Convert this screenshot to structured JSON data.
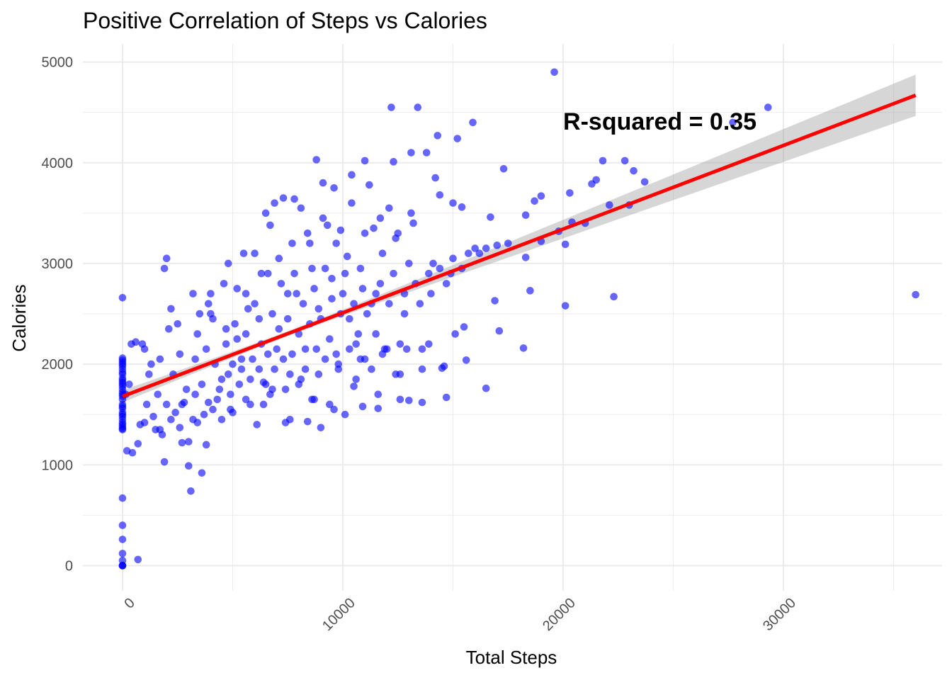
{
  "chart_data": {
    "type": "scatter",
    "title": "Positive Correlation of Steps vs Calories",
    "xlabel": "Total Steps",
    "ylabel": "Calories",
    "xlim": [
      -1800,
      37200
    ],
    "ylim": [
      -250,
      5180
    ],
    "x_ticks": [
      0,
      10000,
      20000,
      30000
    ],
    "x_tick_labels": [
      "0",
      "10000",
      "20000",
      "30000"
    ],
    "y_ticks": [
      0,
      1000,
      2000,
      3000,
      4000,
      5000
    ],
    "y_tick_labels": [
      "0",
      "1000",
      "2000",
      "3000",
      "4000",
      "5000"
    ],
    "grid": true,
    "point_color": "#0000ff",
    "point_opacity": 0.6,
    "line_color": "#ff0000",
    "ribbon_color": "#999999",
    "regression": {
      "x_start": 0,
      "y_start": 1680,
      "x_end": 36000,
      "y_end": 4670,
      "ci_halfwidth_start": 60,
      "ci_halfwidth_mid": 25,
      "ci_halfwidth_end": 205,
      "x_mean": 7600
    },
    "annotation": {
      "text": "R-squared =  0.35",
      "x": 20000,
      "y": 4330
    },
    "points_note_generation": "sampled",
    "points": [
      [
        0,
        0
      ],
      [
        0,
        0
      ],
      [
        0,
        0
      ],
      [
        0,
        50
      ],
      [
        0,
        120
      ],
      [
        0,
        260
      ],
      [
        0,
        400
      ],
      [
        0,
        670
      ],
      [
        0,
        2660
      ],
      [
        0,
        1350
      ],
      [
        0,
        1360
      ],
      [
        0,
        1380
      ],
      [
        0,
        1400
      ],
      [
        0,
        1420
      ],
      [
        0,
        1450
      ],
      [
        0,
        1480
      ],
      [
        0,
        1500
      ],
      [
        0,
        1520
      ],
      [
        0,
        1560
      ],
      [
        0,
        1580
      ],
      [
        0,
        1600
      ],
      [
        0,
        1650
      ],
      [
        0,
        1680
      ],
      [
        0,
        1700
      ],
      [
        0,
        1720
      ],
      [
        0,
        1750
      ],
      [
        0,
        1780
      ],
      [
        0,
        1800
      ],
      [
        0,
        1820
      ],
      [
        0,
        1840
      ],
      [
        0,
        1860
      ],
      [
        0,
        1900
      ],
      [
        0,
        1920
      ],
      [
        0,
        1950
      ],
      [
        0,
        1980
      ],
      [
        0,
        2000
      ],
      [
        0,
        2020
      ],
      [
        0,
        2040
      ],
      [
        0,
        2060
      ],
      [
        700,
        60
      ],
      [
        200,
        1140
      ],
      [
        450,
        1120
      ],
      [
        150,
        1700
      ],
      [
        300,
        1800
      ],
      [
        400,
        2200
      ],
      [
        600,
        2220
      ],
      [
        900,
        2200
      ],
      [
        1100,
        1600
      ],
      [
        800,
        1400
      ],
      [
        700,
        1210
      ],
      [
        1000,
        1420
      ],
      [
        1200,
        1900
      ],
      [
        1400,
        1480
      ],
      [
        1500,
        1350
      ],
      [
        1800,
        1300
      ],
      [
        1900,
        1030
      ],
      [
        2000,
        1600
      ],
      [
        2100,
        2350
      ],
      [
        1900,
        2950
      ],
      [
        2000,
        3050
      ],
      [
        2200,
        2550
      ],
      [
        2500,
        2400
      ],
      [
        2400,
        1520
      ],
      [
        2600,
        1370
      ],
      [
        2800,
        1620
      ],
      [
        2700,
        1220
      ],
      [
        3000,
        1230
      ],
      [
        3000,
        990
      ],
      [
        3100,
        740
      ],
      [
        3200,
        1450
      ],
      [
        3300,
        1700
      ],
      [
        3400,
        2300
      ],
      [
        3500,
        2500
      ],
      [
        3600,
        920
      ],
      [
        3700,
        1500
      ],
      [
        3800,
        1200
      ],
      [
        3900,
        1620
      ],
      [
        3900,
        2600
      ],
      [
        4000,
        2700
      ],
      [
        4100,
        2450
      ],
      [
        4300,
        1650
      ],
      [
        4400,
        1750
      ],
      [
        4500,
        1450
      ],
      [
        4600,
        2800
      ],
      [
        4700,
        2200
      ],
      [
        4800,
        1900
      ],
      [
        4900,
        1550
      ],
      [
        5000,
        2000
      ],
      [
        5100,
        2400
      ],
      [
        5200,
        2750
      ],
      [
        5300,
        1800
      ],
      [
        5400,
        2050
      ],
      [
        5500,
        3100
      ],
      [
        5600,
        1650
      ],
      [
        5700,
        2550
      ],
      [
        5900,
        2050
      ],
      [
        6000,
        3100
      ],
      [
        6100,
        1400
      ],
      [
        6200,
        2450
      ],
      [
        6400,
        1820
      ],
      [
        6500,
        3500
      ],
      [
        6600,
        2900
      ],
      [
        6700,
        3380
      ],
      [
        6800,
        1750
      ],
      [
        6900,
        3600
      ],
      [
        7000,
        2150
      ],
      [
        7200,
        2800
      ],
      [
        7300,
        3650
      ],
      [
        7400,
        1420
      ],
      [
        7500,
        2450
      ],
      [
        7600,
        1900
      ],
      [
        7800,
        3640
      ],
      [
        7900,
        2700
      ],
      [
        8000,
        1800
      ],
      [
        8100,
        3550
      ],
      [
        8300,
        2150
      ],
      [
        8400,
        1430
      ],
      [
        8500,
        3200
      ],
      [
        8600,
        2950
      ],
      [
        8700,
        1650
      ],
      [
        8800,
        4030
      ],
      [
        8900,
        2550
      ],
      [
        9000,
        1370
      ],
      [
        9100,
        3800
      ],
      [
        9200,
        2050
      ],
      [
        9300,
        3380
      ],
      [
        9400,
        1600
      ],
      [
        9500,
        2850
      ],
      [
        9600,
        3750
      ],
      [
        9800,
        2000
      ],
      [
        9900,
        3330
      ],
      [
        10000,
        2700
      ],
      [
        10100,
        1500
      ],
      [
        10200,
        3070
      ],
      [
        10300,
        2450
      ],
      [
        10400,
        3880
      ],
      [
        10500,
        1780
      ],
      [
        10600,
        2200
      ],
      [
        10800,
        2950
      ],
      [
        10900,
        1580
      ],
      [
        11000,
        4020
      ],
      [
        11100,
        2500
      ],
      [
        11200,
        3780
      ],
      [
        11300,
        1950
      ],
      [
        11400,
        3350
      ],
      [
        11500,
        2700
      ],
      [
        11600,
        1560
      ],
      [
        11800,
        3100
      ],
      [
        12000,
        2150
      ],
      [
        12100,
        3550
      ],
      [
        12200,
        4550
      ],
      [
        12300,
        4010
      ],
      [
        12400,
        1900
      ],
      [
        12500,
        3300
      ],
      [
        12600,
        1650
      ],
      [
        12800,
        2500
      ],
      [
        13000,
        1640
      ],
      [
        13100,
        4100
      ],
      [
        13200,
        3400
      ],
      [
        13400,
        4550
      ],
      [
        13500,
        2600
      ],
      [
        13600,
        1620
      ],
      [
        13800,
        4100
      ],
      [
        14000,
        2700
      ],
      [
        14200,
        3850
      ],
      [
        14300,
        4270
      ],
      [
        14400,
        3680
      ],
      [
        14500,
        1960
      ],
      [
        14700,
        1670
      ],
      [
        14900,
        2900
      ],
      [
        15000,
        3600
      ],
      [
        15200,
        4240
      ],
      [
        15400,
        3560
      ],
      [
        15500,
        2370
      ],
      [
        15600,
        2040
      ],
      [
        15900,
        4400
      ],
      [
        16200,
        3100
      ],
      [
        16500,
        1760
      ],
      [
        16700,
        3460
      ],
      [
        16900,
        2630
      ],
      [
        17100,
        2330
      ],
      [
        17300,
        3940
      ],
      [
        18200,
        2160
      ],
      [
        18300,
        3060
      ],
      [
        18500,
        2730
      ],
      [
        18700,
        3620
      ],
      [
        19000,
        3670
      ],
      [
        19600,
        4900
      ],
      [
        19800,
        3320
      ],
      [
        20100,
        2580
      ],
      [
        20100,
        3190
      ],
      [
        20300,
        3700
      ],
      [
        21300,
        3790
      ],
      [
        21500,
        3830
      ],
      [
        21800,
        4020
      ],
      [
        22300,
        2670
      ],
      [
        22800,
        4020
      ],
      [
        23200,
        3920
      ],
      [
        23700,
        3810
      ],
      [
        27700,
        4400
      ],
      [
        29300,
        4550
      ],
      [
        36000,
        2690
      ],
      [
        1000,
        2150
      ],
      [
        1300,
        2000
      ],
      [
        1600,
        1700
      ],
      [
        1700,
        2050
      ],
      [
        2300,
        1900
      ],
      [
        2600,
        2100
      ],
      [
        2900,
        1750
      ],
      [
        3300,
        2050
      ],
      [
        3600,
        1800
      ],
      [
        3800,
        2150
      ],
      [
        4200,
        2000
      ],
      [
        4500,
        1850
      ],
      [
        4700,
        2350
      ],
      [
        4900,
        1700
      ],
      [
        5200,
        2250
      ],
      [
        5400,
        1950
      ],
      [
        5600,
        2300
      ],
      [
        5800,
        1850
      ],
      [
        6000,
        2600
      ],
      [
        6200,
        1950
      ],
      [
        6300,
        2200
      ],
      [
        6500,
        1800
      ],
      [
        6600,
        2100
      ],
      [
        6800,
        2500
      ],
      [
        6900,
        1950
      ],
      [
        7100,
        2350
      ],
      [
        7300,
        2050
      ],
      [
        7500,
        2700
      ],
      [
        7700,
        2100
      ],
      [
        7800,
        2900
      ],
      [
        8000,
        2300
      ],
      [
        8200,
        2600
      ],
      [
        8300,
        1950
      ],
      [
        8500,
        2400
      ],
      [
        8700,
        2750
      ],
      [
        8800,
        2150
      ],
      [
        9000,
        2450
      ],
      [
        9200,
        2950
      ],
      [
        9400,
        2250
      ],
      [
        9500,
        2650
      ],
      [
        9700,
        2100
      ],
      [
        9900,
        2500
      ],
      [
        10100,
        2900
      ],
      [
        10300,
        2150
      ],
      [
        10500,
        2600
      ],
      [
        10700,
        2300
      ],
      [
        10900,
        2750
      ],
      [
        11000,
        2050
      ],
      [
        11300,
        2600
      ],
      [
        11500,
        2300
      ],
      [
        11700,
        2800
      ],
      [
        11900,
        2150
      ],
      [
        12100,
        2600
      ],
      [
        12300,
        2900
      ],
      [
        12600,
        2200
      ],
      [
        12800,
        2700
      ],
      [
        13000,
        3000
      ],
      [
        13300,
        2800
      ],
      [
        13600,
        2150
      ],
      [
        13900,
        2900
      ],
      [
        14100,
        3000
      ],
      [
        14400,
        2950
      ],
      [
        14700,
        2800
      ],
      [
        15000,
        3050
      ],
      [
        15400,
        2950
      ],
      [
        15700,
        3100
      ],
      [
        16000,
        3150
      ],
      [
        16500,
        3150
      ],
      [
        17000,
        3180
      ],
      [
        17500,
        3200
      ],
      [
        18300,
        3480
      ],
      [
        19000,
        3220
      ],
      [
        20400,
        3410
      ],
      [
        21000,
        3400
      ],
      [
        22100,
        3580
      ],
      [
        23000,
        3580
      ],
      [
        3200,
        2700
      ],
      [
        4000,
        2500
      ],
      [
        4800,
        3000
      ],
      [
        5600,
        2700
      ],
      [
        6300,
        2900
      ],
      [
        7100,
        3050
      ],
      [
        7700,
        3200
      ],
      [
        8400,
        3300
      ],
      [
        9100,
        3450
      ],
      [
        9700,
        3200
      ],
      [
        10400,
        3600
      ],
      [
        11000,
        3300
      ],
      [
        11700,
        3450
      ],
      [
        12400,
        3250
      ],
      [
        13100,
        3500
      ],
      [
        6400,
        1600
      ],
      [
        7600,
        1450
      ],
      [
        8600,
        1650
      ],
      [
        9600,
        1550
      ],
      [
        10600,
        1850
      ],
      [
        11600,
        1700
      ],
      [
        12600,
        1900
      ],
      [
        13600,
        1950
      ],
      [
        14600,
        1980
      ],
      [
        1700,
        1350
      ],
      [
        2200,
        1450
      ],
      [
        2700,
        1600
      ],
      [
        3400,
        1420
      ],
      [
        4100,
        1550
      ],
      [
        5000,
        1520
      ],
      [
        5800,
        1600
      ],
      [
        6700,
        1700
      ],
      [
        7400,
        1750
      ],
      [
        8100,
        1850
      ],
      [
        8900,
        1900
      ],
      [
        9800,
        1950
      ],
      [
        10800,
        2050
      ],
      [
        11800,
        2100
      ],
      [
        12900,
        2150
      ],
      [
        13900,
        2200
      ],
      [
        15100,
        2300
      ]
    ]
  }
}
